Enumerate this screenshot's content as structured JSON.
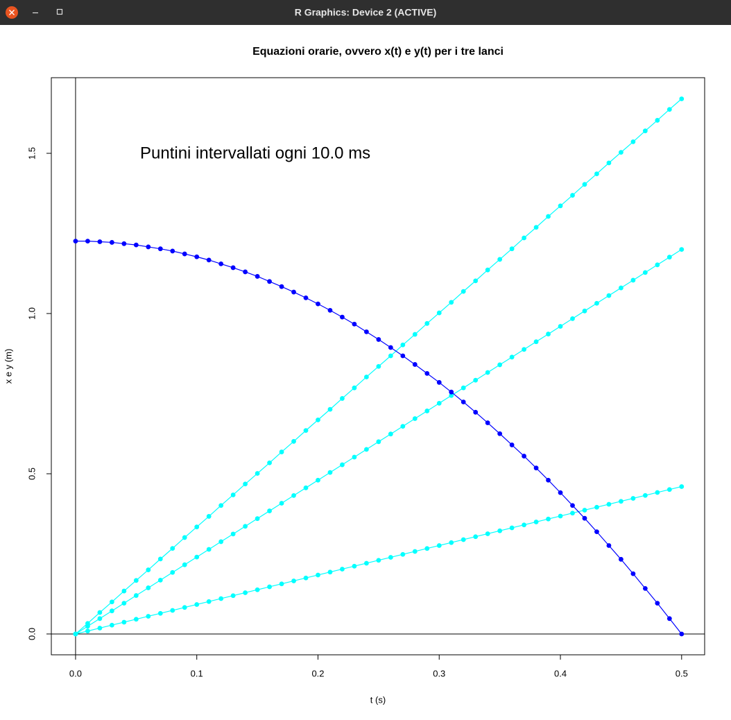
{
  "window": {
    "title": "R Graphics: Device 2 (ACTIVE)"
  },
  "chart_data": {
    "type": "line",
    "title": "Equazioni orarie, ovvero x(t) e y(t) per i tre lanci",
    "x_label": "t (s)",
    "y_label": "x e y (m)",
    "annotation": "Puntini intervallati ogni 10.0 ms",
    "x": [
      0,
      0.01,
      0.02,
      0.03,
      0.04,
      0.05,
      0.06,
      0.07,
      0.08,
      0.09,
      0.1,
      0.11,
      0.12,
      0.13,
      0.14,
      0.15,
      0.16,
      0.17,
      0.18,
      0.19,
      0.2,
      0.21,
      0.22,
      0.23,
      0.24,
      0.25,
      0.26,
      0.27,
      0.28,
      0.29,
      0.3,
      0.31,
      0.32,
      0.33,
      0.34,
      0.35,
      0.36,
      0.37,
      0.38,
      0.39,
      0.4,
      0.41,
      0.42,
      0.43,
      0.44,
      0.45,
      0.46,
      0.47,
      0.48,
      0.49,
      0.5
    ],
    "series": [
      {
        "color": "#00ffff",
        "values": [
          0,
          0.033,
          0.067,
          0.1,
          0.134,
          0.167,
          0.2,
          0.234,
          0.267,
          0.301,
          0.334,
          0.367,
          0.401,
          0.434,
          0.468,
          0.501,
          0.534,
          0.568,
          0.601,
          0.635,
          0.668,
          0.701,
          0.735,
          0.768,
          0.802,
          0.835,
          0.868,
          0.902,
          0.935,
          0.969,
          1.002,
          1.035,
          1.069,
          1.102,
          1.136,
          1.169,
          1.202,
          1.236,
          1.269,
          1.303,
          1.336,
          1.369,
          1.403,
          1.436,
          1.47,
          1.503,
          1.536,
          1.57,
          1.603,
          1.637,
          1.67
        ]
      },
      {
        "color": "#00ffff",
        "values": [
          0,
          0.024,
          0.048,
          0.072,
          0.096,
          0.12,
          0.144,
          0.168,
          0.192,
          0.216,
          0.24,
          0.264,
          0.288,
          0.312,
          0.336,
          0.36,
          0.384,
          0.408,
          0.432,
          0.456,
          0.48,
          0.504,
          0.528,
          0.552,
          0.576,
          0.6,
          0.624,
          0.648,
          0.672,
          0.696,
          0.72,
          0.744,
          0.768,
          0.792,
          0.816,
          0.84,
          0.864,
          0.888,
          0.912,
          0.936,
          0.96,
          0.984,
          1.008,
          1.032,
          1.056,
          1.08,
          1.104,
          1.128,
          1.152,
          1.176,
          1.2
        ]
      },
      {
        "color": "#00ffff",
        "values": [
          0,
          0.0092,
          0.0184,
          0.0276,
          0.0368,
          0.046,
          0.0552,
          0.0644,
          0.0736,
          0.0828,
          0.092,
          0.1012,
          0.1104,
          0.1196,
          0.1288,
          0.138,
          0.1472,
          0.1564,
          0.1656,
          0.1748,
          0.184,
          0.1932,
          0.2024,
          0.2116,
          0.2208,
          0.23,
          0.2392,
          0.2484,
          0.2576,
          0.2668,
          0.276,
          0.2852,
          0.2944,
          0.3036,
          0.3128,
          0.322,
          0.3312,
          0.3404,
          0.3496,
          0.3588,
          0.368,
          0.3772,
          0.3864,
          0.3956,
          0.4048,
          0.414,
          0.4232,
          0.4324,
          0.4416,
          0.4508,
          0.46
        ]
      },
      {
        "color": "#0000ff",
        "values": [
          1.226,
          1.226,
          1.224,
          1.222,
          1.218,
          1.214,
          1.208,
          1.202,
          1.195,
          1.186,
          1.177,
          1.167,
          1.155,
          1.143,
          1.13,
          1.116,
          1.1,
          1.084,
          1.067,
          1.049,
          1.03,
          1.01,
          0.989,
          0.967,
          0.943,
          0.919,
          0.894,
          0.868,
          0.841,
          0.813,
          0.785,
          0.755,
          0.724,
          0.692,
          0.659,
          0.625,
          0.59,
          0.555,
          0.518,
          0.48,
          0.441,
          0.401,
          0.361,
          0.319,
          0.276,
          0.233,
          0.188,
          0.142,
          0.096,
          0.048,
          0
        ]
      }
    ],
    "xlim": [
      -0.02,
      0.519
    ],
    "ylim": [
      -0.065,
      1.736
    ],
    "xticks": [
      {
        "value": 0,
        "label": "0.0"
      },
      {
        "value": 0.1,
        "label": "0.1"
      },
      {
        "value": 0.2,
        "label": "0.2"
      },
      {
        "value": 0.3,
        "label": "0.3"
      },
      {
        "value": 0.4,
        "label": "0.4"
      },
      {
        "value": 0.5,
        "label": "0.5"
      }
    ],
    "yticks": [
      {
        "value": 0,
        "label": "0.0"
      },
      {
        "value": 0.5,
        "label": "0.5"
      },
      {
        "value": 1,
        "label": "1.0"
      },
      {
        "value": 1.5,
        "label": "1.5"
      }
    ],
    "reference_lines": true
  }
}
